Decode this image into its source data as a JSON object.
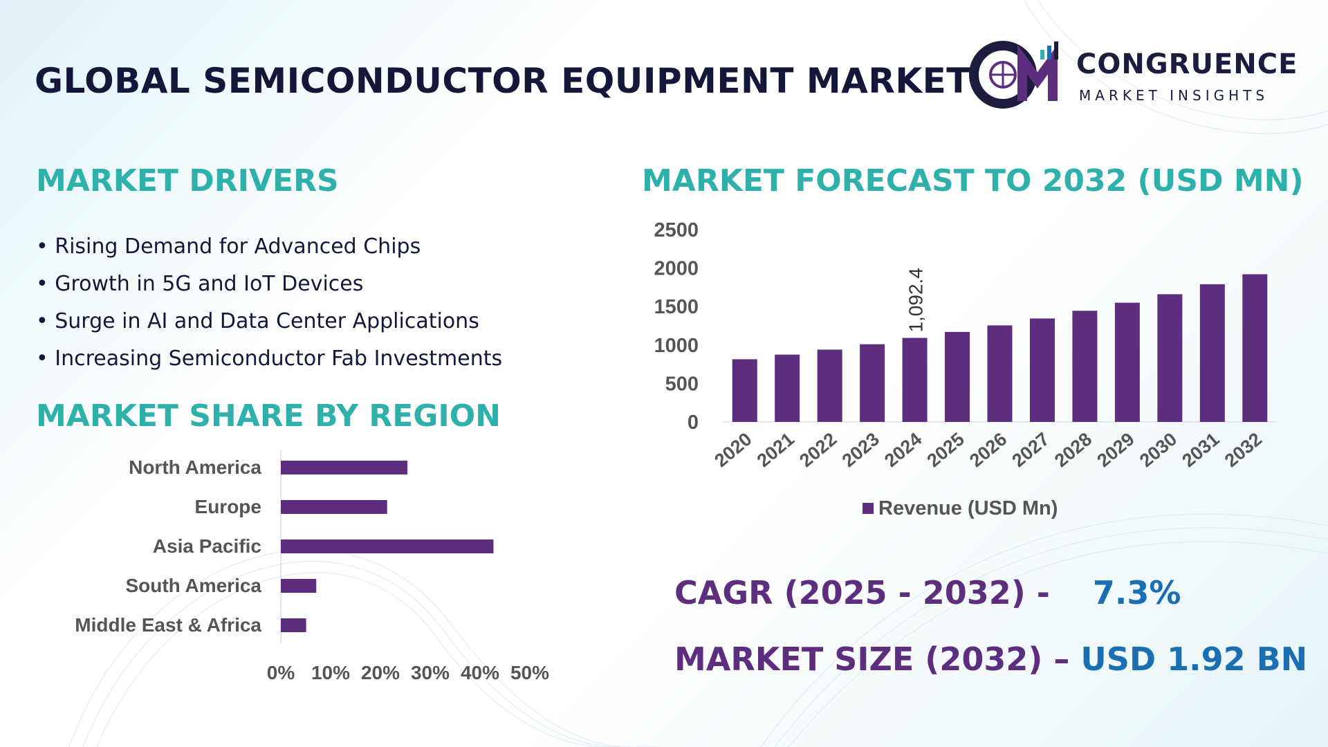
{
  "header": {
    "title": "GLOBAL SEMICONDUCTOR EQUIPMENT MARKET",
    "logo_name": "CONGRUENCE",
    "logo_tagline": "MARKET INSIGHTS"
  },
  "drivers": {
    "heading": "MARKET DRIVERS",
    "items": [
      "Rising Demand for Advanced Chips",
      "Growth in 5G and IoT Devices",
      "Surge in AI and Data Center Applications",
      "Increasing Semiconductor Fab Investments"
    ]
  },
  "region_section": {
    "heading": "MARKET SHARE BY REGION"
  },
  "forecast_section": {
    "heading": "MARKET FORECAST TO 2032 (USD MN)"
  },
  "stats": {
    "cagr_label": "CAGR (2025 - 2032) -",
    "cagr_value": "7.3%",
    "size_label": "MARKET SIZE (2032) –",
    "size_value": "USD 1.92 BN"
  },
  "colors": {
    "bar": "#5e2e7e",
    "accent": "#2eb0ab",
    "title": "#14163a",
    "value": "#1a6fb3"
  },
  "chart_data": [
    {
      "type": "bar",
      "orientation": "horizontal",
      "title": "MARKET SHARE BY REGION",
      "categories": [
        "North America",
        "Europe",
        "Asia Pacific",
        "South America",
        "Middle East & Africa"
      ],
      "values": [
        25,
        21,
        42,
        7,
        5
      ],
      "xticks": [
        "0%",
        "10%",
        "20%",
        "30%",
        "40%",
        "50%"
      ],
      "xlim": [
        0,
        50
      ]
    },
    {
      "type": "bar",
      "title": "MARKET FORECAST TO 2032 (USD MN)",
      "categories": [
        "2020",
        "2021",
        "2022",
        "2023",
        "2024",
        "2025",
        "2026",
        "2027",
        "2028",
        "2029",
        "2030",
        "2031",
        "2032"
      ],
      "values": [
        815,
        875,
        940,
        1010,
        1092.4,
        1170,
        1255,
        1345,
        1445,
        1550,
        1660,
        1790,
        1920
      ],
      "data_labels": [
        {
          "category": "2024",
          "text": "1,092.4"
        }
      ],
      "yticks": [
        "0",
        "500",
        "1000",
        "1500",
        "2000",
        "2500"
      ],
      "ylim": [
        0,
        2500
      ],
      "legend": "Revenue (USD Mn)",
      "legend_position": "bottom"
    }
  ]
}
